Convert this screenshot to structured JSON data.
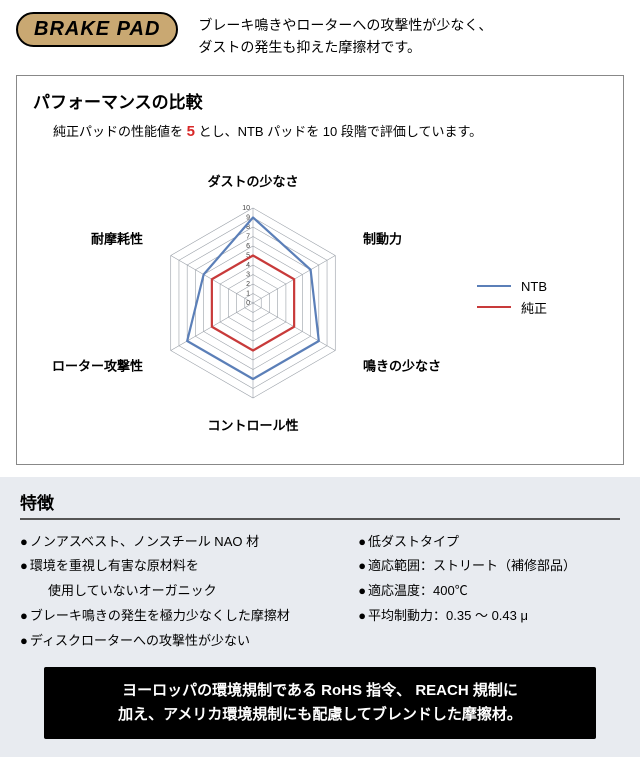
{
  "header": {
    "logo": "BRAKE PAD",
    "desc_l1": "ブレーキ鳴きやローターへの攻撃性が少なく、",
    "desc_l2": "ダストの発生も抑えた摩擦材です。"
  },
  "chart": {
    "title": "パフォーマンスの比較",
    "sub_pre": "純正パッドの性能値を ",
    "sub_five": "5",
    "sub_post": " とし、NTB パッドを 10 段階で評価しています。",
    "type": "radar",
    "max": 10,
    "rings": [
      1,
      2,
      3,
      4,
      5,
      6,
      7,
      8,
      9,
      10
    ],
    "grid_color": "#9aa0a8",
    "axes": [
      {
        "label": "ダストの少なさ",
        "angle": 90
      },
      {
        "label": "制動力",
        "angle": 30
      },
      {
        "label": "鳴きの少なさ",
        "angle": -30
      },
      {
        "label": "コントロール性",
        "angle": -90
      },
      {
        "label": "ローター攻撃性",
        "angle": -150
      },
      {
        "label": "耐摩耗性",
        "angle": 150
      }
    ],
    "series": [
      {
        "name": "NTB",
        "label": "NTB",
        "color": "#5b7fb8",
        "width": 2.2,
        "values": [
          9,
          7,
          8,
          8,
          8,
          6
        ]
      },
      {
        "name": "genuine",
        "label": "純正",
        "color": "#c83a3a",
        "width": 2.2,
        "values": [
          5,
          5,
          5,
          5,
          5,
          5
        ]
      }
    ],
    "label_fontsize": 13,
    "tick_fontsize": 7,
    "background": "#ffffff"
  },
  "features": {
    "title": "特徴",
    "left": [
      {
        "t": "ノンアスベスト、ノンスチール NAO 材"
      },
      {
        "t": "環境を重視し有害な原材料を",
        "sub": "使用していないオーガニック"
      },
      {
        "t": "ブレーキ鳴きの発生を極力少なくした摩擦材"
      },
      {
        "t": "ディスクローターへの攻撃性が少ない"
      }
    ],
    "right": [
      {
        "t": "低ダストタイプ"
      },
      {
        "t": "適応範囲：ストリート（補修部品）"
      },
      {
        "t": "適応温度：400℃"
      },
      {
        "t": "平均制動力：0.35 ～ 0.43 μ"
      }
    ]
  },
  "footer": {
    "l1": "ヨーロッパの環境規制である RoHS 指令、 REACH 規制に",
    "l2": "加え、アメリカ環境規制にも配慮してブレンドした摩擦材。"
  }
}
